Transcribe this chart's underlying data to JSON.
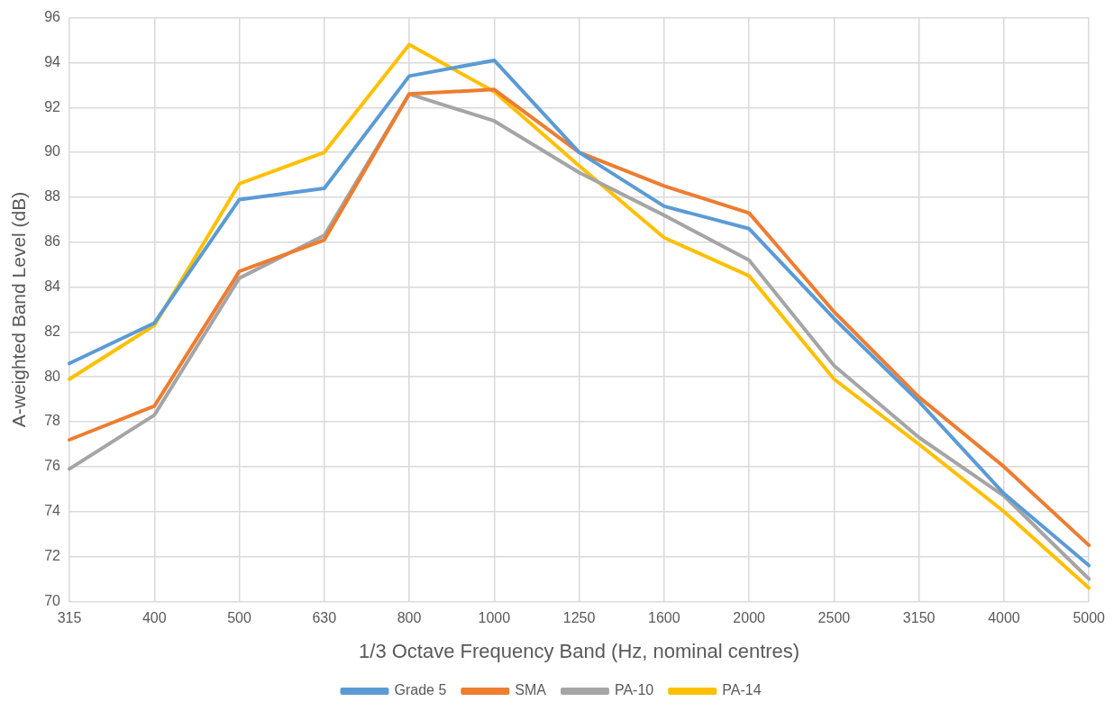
{
  "chart_data": {
    "type": "line",
    "xlabel": "1/3 Octave Frequency Band (Hz, nominal centres)",
    "ylabel": "A-weighted Band Level (dB)",
    "categories": [
      "315",
      "400",
      "500",
      "630",
      "800",
      "1000",
      "1250",
      "1600",
      "2000",
      "2500",
      "3150",
      "4000",
      "5000"
    ],
    "series": [
      {
        "name": "Grade 5",
        "color": "#5b9bd5",
        "values": [
          80.6,
          82.4,
          87.9,
          88.4,
          93.4,
          94.1,
          90.0,
          87.6,
          86.6,
          82.6,
          78.9,
          74.8,
          71.6
        ]
      },
      {
        "name": "SMA",
        "color": "#ed7d31",
        "values": [
          77.2,
          78.7,
          84.7,
          86.1,
          92.6,
          92.8,
          90.0,
          88.5,
          87.3,
          82.9,
          79.1,
          76.0,
          72.5
        ]
      },
      {
        "name": "PA-10",
        "color": "#a5a5a5",
        "values": [
          75.9,
          78.3,
          84.4,
          86.3,
          92.6,
          91.4,
          89.1,
          87.2,
          85.2,
          80.5,
          77.3,
          74.7,
          71.0
        ]
      },
      {
        "name": "PA-14",
        "color": "#ffc000",
        "values": [
          79.9,
          82.3,
          88.6,
          90.0,
          94.8,
          92.7,
          89.4,
          86.2,
          84.5,
          79.9,
          77.0,
          74.0,
          70.6
        ]
      }
    ],
    "ylim": [
      70,
      96
    ],
    "yticks": [
      70,
      72,
      74,
      76,
      78,
      80,
      82,
      84,
      86,
      88,
      90,
      92,
      94,
      96
    ],
    "grid": true,
    "legend": "bottom",
    "marker": "none",
    "line_style": "solid"
  }
}
